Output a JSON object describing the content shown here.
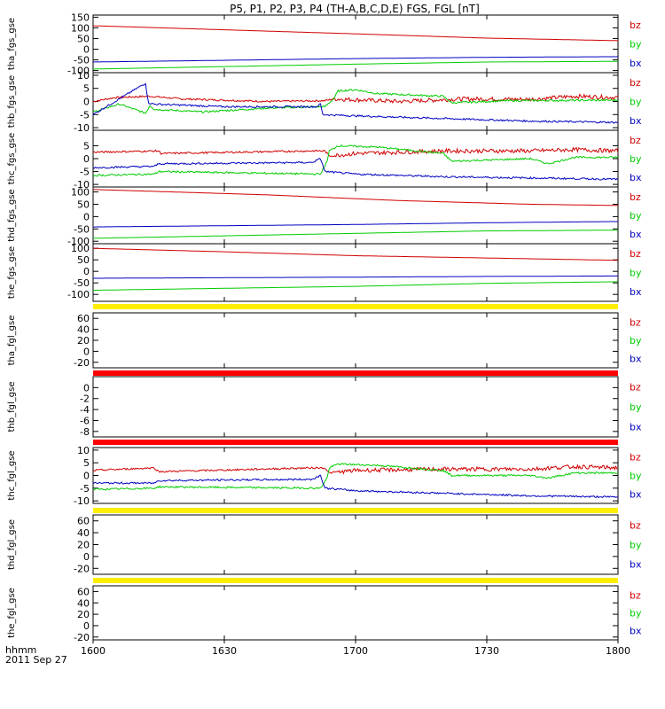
{
  "title": "P5, P1, P2, P3, P4 (TH-A,B,C,D,E) FGS, FGL [nT]",
  "colors": {
    "bz": "#d00000",
    "by": "#00cc00",
    "bx": "#0000c0",
    "yellow": "#ffee00",
    "red": "#ff0000",
    "axis": "#000000"
  },
  "footer": {
    "time_format": "hhmm",
    "date": "2011 Sep 27"
  },
  "chart_data": {
    "type": "line",
    "x_ticks": [
      "1600",
      "1630",
      "1700",
      "1730",
      "1800"
    ],
    "x_range": [
      "16:00",
      "18:00"
    ],
    "panels": [
      {
        "ylabel": "tha_fgs_gse",
        "ylim": [
          -110,
          160
        ],
        "yticks": [
          "150",
          "100",
          "50",
          "0",
          "-50",
          "-100"
        ],
        "legend": [
          "bz",
          "by",
          "bx"
        ],
        "series": [
          {
            "name": "bz",
            "color": "bz",
            "points": [
              [
                0,
                110
              ],
              [
                60,
                72
              ],
              [
                90,
                52
              ],
              [
                120,
                40
              ]
            ]
          },
          {
            "name": "bx",
            "color": "bx",
            "points": [
              [
                0,
                -60
              ],
              [
                60,
                -44
              ],
              [
                90,
                -38
              ],
              [
                120,
                -35
              ]
            ]
          },
          {
            "name": "by",
            "color": "by",
            "points": [
              [
                0,
                -93
              ],
              [
                60,
                -70
              ],
              [
                90,
                -60
              ],
              [
                120,
                -57
              ]
            ]
          }
        ]
      },
      {
        "ylabel": "thb_fgs_gse",
        "ylim": [
          -11,
          11
        ],
        "yticks": [
          "10",
          "5",
          "0",
          "-5",
          "-10"
        ],
        "legend": [
          "bz",
          "by",
          "bx"
        ],
        "series": [
          {
            "name": "bz",
            "color": "bz",
            "points": [
              [
                0,
                0
              ],
              [
                5,
                1.5
              ],
              [
                13,
                2
              ],
              [
                20,
                1
              ],
              [
                40,
                0
              ],
              [
                53,
                0.3
              ],
              [
                55,
                1
              ],
              [
                70,
                0
              ],
              [
                85,
                1
              ],
              [
                100,
                0.8
              ],
              [
                110,
                2
              ],
              [
                120,
                1.5
              ]
            ]
          },
          {
            "name": "by",
            "color": "by",
            "points": [
              [
                0,
                -4
              ],
              [
                6,
                -1
              ],
              [
                12,
                -4.5
              ],
              [
                13,
                -1.5
              ],
              [
                14,
                -3
              ],
              [
                25,
                -4
              ],
              [
                40,
                -2.5
              ],
              [
                53,
                -2
              ],
              [
                55,
                1
              ],
              [
                56,
                4
              ],
              [
                60,
                4.5
              ],
              [
                65,
                3
              ],
              [
                80,
                2
              ],
              [
                82,
                -0.5
              ],
              [
                95,
                0.3
              ],
              [
                120,
                0.5
              ]
            ]
          },
          {
            "name": "bx",
            "color": "bx",
            "points": [
              [
                0,
                -5
              ],
              [
                7,
                2
              ],
              [
                12,
                7
              ],
              [
                12.6,
                -0.5
              ],
              [
                14,
                -1
              ],
              [
                30,
                -2
              ],
              [
                51,
                -2
              ],
              [
                52,
                -1
              ],
              [
                52.5,
                -5
              ],
              [
                60,
                -5.5
              ],
              [
                80,
                -6.5
              ],
              [
                100,
                -7.5
              ],
              [
                120,
                -8
              ]
            ]
          }
        ]
      },
      {
        "ylabel": "thc_fgs_gse",
        "ylim": [
          -11,
          11
        ],
        "yticks": [
          "5",
          "0",
          "-5",
          "-10"
        ],
        "legend": [
          "bz",
          "by",
          "bx"
        ],
        "series": [
          {
            "name": "bz",
            "color": "bz",
            "points": [
              [
                0,
                2.5
              ],
              [
                15,
                3
              ],
              [
                15.5,
                2
              ],
              [
                50,
                3
              ],
              [
                53,
                3
              ],
              [
                54,
                1
              ],
              [
                60,
                2
              ],
              [
                80,
                3
              ],
              [
                100,
                3
              ],
              [
                110,
                3.5
              ],
              [
                120,
                3
              ]
            ]
          },
          {
            "name": "by",
            "color": "by",
            "points": [
              [
                0,
                -6.5
              ],
              [
                14,
                -6
              ],
              [
                15,
                -5
              ],
              [
                52,
                -6
              ],
              [
                53.5,
                -1
              ],
              [
                54,
                3
              ],
              [
                56,
                5
              ],
              [
                65,
                4.5
              ],
              [
                80,
                2
              ],
              [
                82,
                -1
              ],
              [
                100,
                0
              ],
              [
                104,
                -2
              ],
              [
                110,
                0.5
              ],
              [
                120,
                0.5
              ]
            ]
          },
          {
            "name": "bx",
            "color": "bx",
            "points": [
              [
                0,
                -3.5
              ],
              [
                14,
                -3
              ],
              [
                15,
                -2
              ],
              [
                50,
                -1.5
              ],
              [
                52,
                0
              ],
              [
                53,
                -5
              ],
              [
                60,
                -6
              ],
              [
                80,
                -7
              ],
              [
                100,
                -7.5
              ],
              [
                120,
                -8
              ]
            ]
          }
        ]
      },
      {
        "ylabel": "thd_fgs_gse",
        "ylim": [
          -110,
          120
        ],
        "yticks": [
          "100",
          "50",
          "0",
          "-50",
          "-100"
        ],
        "legend": [
          "bz",
          "by",
          "bx"
        ],
        "series": [
          {
            "name": "bz",
            "color": "bz",
            "points": [
              [
                0,
                110
              ],
              [
                40,
                88
              ],
              [
                70,
                65
              ],
              [
                100,
                50
              ],
              [
                120,
                45
              ]
            ]
          },
          {
            "name": "bx",
            "color": "bx",
            "points": [
              [
                0,
                -42
              ],
              [
                60,
                -32
              ],
              [
                90,
                -25
              ],
              [
                120,
                -20
              ]
            ]
          },
          {
            "name": "by",
            "color": "by",
            "points": [
              [
                0,
                -88
              ],
              [
                60,
                -68
              ],
              [
                90,
                -58
              ],
              [
                120,
                -55
              ]
            ]
          }
        ]
      },
      {
        "ylabel": "the_fgs_gse",
        "ylim": [
          -130,
          120
        ],
        "yticks": [
          "100",
          "50",
          "0",
          "-50",
          "-100"
        ],
        "legend": [
          "bz",
          "by",
          "bx"
        ],
        "series": [
          {
            "name": "bz",
            "color": "bz",
            "points": [
              [
                0,
                100
              ],
              [
                30,
                85
              ],
              [
                60,
                68
              ],
              [
                90,
                58
              ],
              [
                120,
                48
              ]
            ]
          },
          {
            "name": "bx",
            "color": "bx",
            "points": [
              [
                0,
                -30
              ],
              [
                60,
                -25
              ],
              [
                90,
                -22
              ],
              [
                120,
                -20
              ]
            ]
          },
          {
            "name": "by",
            "color": "by",
            "points": [
              [
                0,
                -82
              ],
              [
                60,
                -65
              ],
              [
                90,
                -52
              ],
              [
                120,
                -45
              ]
            ]
          }
        ]
      },
      {
        "ylabel": "tha_fgl_gse",
        "ylim": [
          -30,
          70
        ],
        "yticks": [
          "60",
          "40",
          "20",
          "0",
          "-20"
        ],
        "legend": [
          "bz",
          "by",
          "bx"
        ],
        "band": "yellow",
        "series": []
      },
      {
        "ylabel": "thb_fgl_gse",
        "ylim": [
          -9,
          2
        ],
        "yticks": [
          "0",
          "-2",
          "-4",
          "-6",
          "-8"
        ],
        "legend": [
          "bz",
          "by",
          "bx"
        ],
        "band": "red",
        "series": []
      },
      {
        "ylabel": "thc_fgl_gse",
        "ylim": [
          -11,
          11
        ],
        "yticks": [
          "10",
          "5",
          "0",
          "-5",
          "-10"
        ],
        "legend": [
          "bz",
          "by",
          "bx"
        ],
        "band": "red",
        "series": [
          {
            "name": "bz",
            "color": "bz",
            "points": [
              [
                0,
                2
              ],
              [
                14,
                3
              ],
              [
                15,
                1.5
              ],
              [
                50,
                3
              ],
              [
                53,
                3
              ],
              [
                54,
                1
              ],
              [
                60,
                2
              ],
              [
                80,
                2.5
              ],
              [
                100,
                2.5
              ],
              [
                110,
                3.5
              ],
              [
                120,
                3
              ]
            ]
          },
          {
            "name": "by",
            "color": "by",
            "points": [
              [
                0,
                -5.5
              ],
              [
                14,
                -5
              ],
              [
                15,
                -4.5
              ],
              [
                52,
                -5
              ],
              [
                53.5,
                -1
              ],
              [
                54,
                3
              ],
              [
                56,
                4.5
              ],
              [
                65,
                4
              ],
              [
                80,
                2
              ],
              [
                82,
                0
              ],
              [
                100,
                0
              ],
              [
                104,
                -1
              ],
              [
                110,
                1
              ],
              [
                120,
                1
              ]
            ]
          },
          {
            "name": "bx",
            "color": "bx",
            "points": [
              [
                0,
                -3
              ],
              [
                14,
                -3
              ],
              [
                15,
                -2
              ],
              [
                50,
                -1.5
              ],
              [
                52,
                0
              ],
              [
                53,
                -5
              ],
              [
                60,
                -6
              ],
              [
                80,
                -7
              ],
              [
                100,
                -8
              ],
              [
                120,
                -8.5
              ]
            ]
          }
        ]
      },
      {
        "ylabel": "thd_fgl_gse",
        "ylim": [
          -30,
          70
        ],
        "yticks": [
          "60",
          "40",
          "20",
          "0",
          "-20"
        ],
        "legend": [
          "bz",
          "by",
          "bx"
        ],
        "band": "yellow",
        "series": []
      },
      {
        "ylabel": "the_fgl_gse",
        "ylim": [
          -25,
          70
        ],
        "yticks": [
          "60",
          "40",
          "20",
          "0",
          "-20"
        ],
        "legend": [
          "bz",
          "by",
          "bx"
        ],
        "band": "yellow",
        "series": []
      }
    ]
  }
}
